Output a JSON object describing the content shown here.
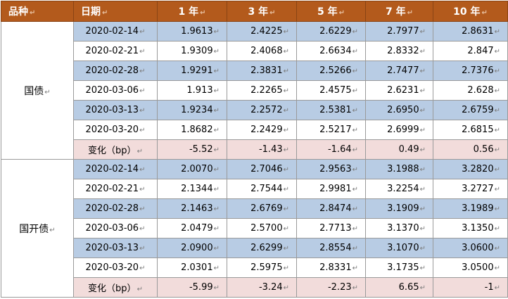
{
  "header": {
    "variety": "品种",
    "date": "日期",
    "tenors": [
      "1 年",
      "3 年",
      "5 年",
      "7 年",
      "10 年"
    ]
  },
  "colors": {
    "header_bg": "#b35a1c",
    "header_text": "#ffffff",
    "shade_row": "#b8cce4",
    "change_row": "#f2dcdb"
  },
  "groups": [
    {
      "name": "国债",
      "rows": [
        {
          "date": "2020-02-14",
          "values": [
            "1.9613",
            "2.4225",
            "2.6229",
            "2.7977",
            "2.8631"
          ]
        },
        {
          "date": "2020-02-21",
          "values": [
            "1.9309",
            "2.4068",
            "2.6634",
            "2.8332",
            "2.847"
          ]
        },
        {
          "date": "2020-02-28",
          "values": [
            "1.9291",
            "2.3831",
            "2.5266",
            "2.7477",
            "2.7376"
          ]
        },
        {
          "date": "2020-03-06",
          "values": [
            "1.913",
            "2.2265",
            "2.4575",
            "2.6231",
            "2.628"
          ]
        },
        {
          "date": "2020-03-13",
          "values": [
            "1.9234",
            "2.2572",
            "2.5381",
            "2.6950",
            "2.6759"
          ]
        },
        {
          "date": "2020-03-20",
          "values": [
            "1.8682",
            "2.2429",
            "2.5217",
            "2.6999",
            "2.6815"
          ]
        }
      ],
      "change": {
        "label": "变化（bp）",
        "values": [
          "-5.52",
          "-1.43",
          "-1.64",
          "0.49",
          "0.56"
        ]
      }
    },
    {
      "name": "国开债",
      "rows": [
        {
          "date": "2020-02-14",
          "values": [
            "2.0070",
            "2.7046",
            "2.9563",
            "3.1988",
            "3.2820"
          ]
        },
        {
          "date": "2020-02-21",
          "values": [
            "2.1344",
            "2.7544",
            "2.9981",
            "3.2254",
            "3.2727"
          ]
        },
        {
          "date": "2020-02-28",
          "values": [
            "2.1463",
            "2.6769",
            "2.8474",
            "3.1909",
            "3.1989"
          ]
        },
        {
          "date": "2020-03-06",
          "values": [
            "2.0479",
            "2.5700",
            "2.7713",
            "3.1370",
            "3.1350"
          ]
        },
        {
          "date": "2020-03-13",
          "values": [
            "2.0900",
            "2.6299",
            "2.8554",
            "3.1070",
            "3.0600"
          ]
        },
        {
          "date": "2020-03-20",
          "values": [
            "2.0301",
            "2.5975",
            "2.8331",
            "3.1735",
            "3.0500"
          ]
        }
      ],
      "change": {
        "label": "变化（bp）",
        "values": [
          "-5.99",
          "-3.24",
          "-2.23",
          "6.65",
          "-1"
        ]
      }
    }
  ]
}
